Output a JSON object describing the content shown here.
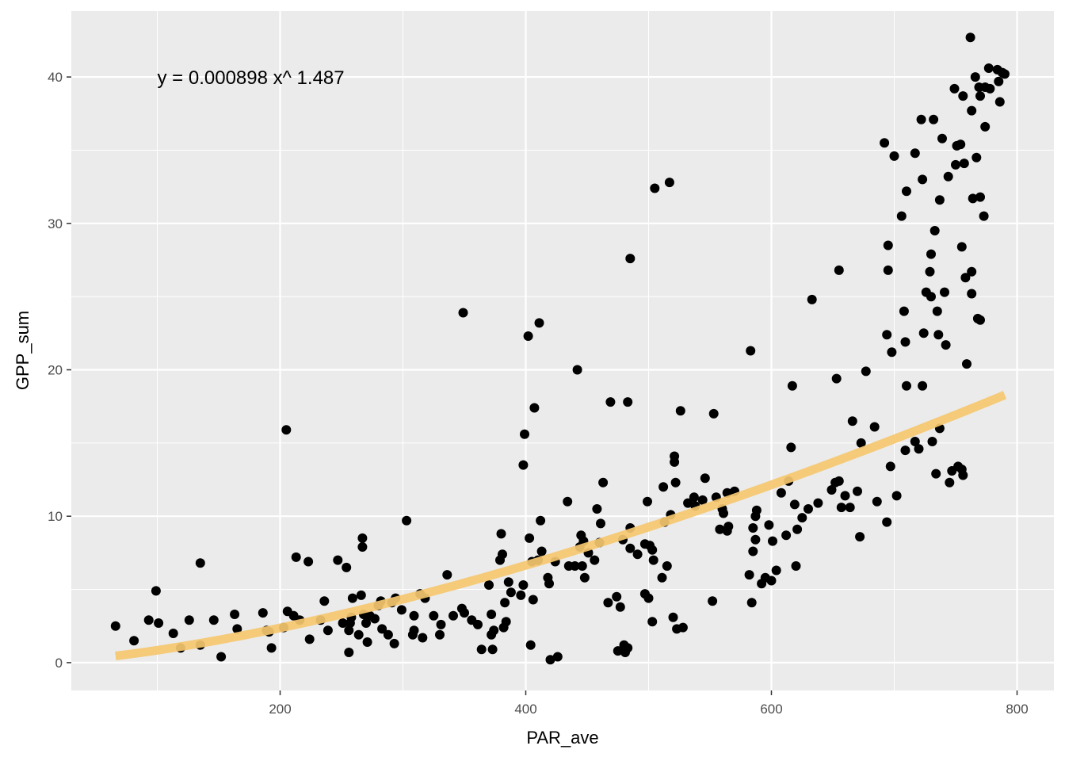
{
  "chart_data": {
    "type": "scatter",
    "title": "",
    "xlabel": "PAR_ave",
    "ylabel": "GPP_sum",
    "xlim": [
      30,
      830
    ],
    "ylim": [
      -1.9,
      44.5
    ],
    "x_ticks": [
      200,
      400,
      600,
      800
    ],
    "y_ticks": [
      0,
      10,
      20,
      30,
      40
    ],
    "grid": true,
    "legend": "none",
    "annotation": {
      "text": "y =  0.000898  x^ 1.487",
      "x": 100,
      "y": 40
    },
    "fit": {
      "type": "power",
      "a": 0.000898,
      "b": 1.487,
      "x_range": [
        66,
        790
      ],
      "color": "#F5C76F"
    },
    "point_color": "#000000",
    "panel_color": "#EBEBEB",
    "points": [
      [
        66,
        2.5
      ],
      [
        81,
        1.5
      ],
      [
        93,
        2.9
      ],
      [
        99,
        4.9
      ],
      [
        101,
        2.7
      ],
      [
        113,
        2.0
      ],
      [
        119,
        1.0
      ],
      [
        126,
        2.9
      ],
      [
        135,
        1.2
      ],
      [
        135,
        6.8
      ],
      [
        146,
        2.9
      ],
      [
        152,
        0.4
      ],
      [
        163,
        3.3
      ],
      [
        165,
        2.3
      ],
      [
        186,
        3.4
      ],
      [
        189,
        2.2
      ],
      [
        191,
        2.1
      ],
      [
        193,
        1.0
      ],
      [
        203,
        2.4
      ],
      [
        205,
        15.9
      ],
      [
        206,
        3.5
      ],
      [
        211,
        3.2
      ],
      [
        213,
        7.2
      ],
      [
        216,
        2.9
      ],
      [
        223,
        6.9
      ],
      [
        224,
        1.6
      ],
      [
        233,
        2.9
      ],
      [
        236,
        4.2
      ],
      [
        239,
        2.2
      ],
      [
        247,
        7.0
      ],
      [
        251,
        2.7
      ],
      [
        254,
        6.5
      ],
      [
        256,
        2.2
      ],
      [
        256,
        0.7
      ],
      [
        257,
        2.7
      ],
      [
        258,
        3.1
      ],
      [
        259,
        4.4
      ],
      [
        264,
        1.9
      ],
      [
        266,
        4.6
      ],
      [
        267,
        7.9
      ],
      [
        267,
        8.5
      ],
      [
        268,
        3.3
      ],
      [
        270,
        2.7
      ],
      [
        271,
        1.4
      ],
      [
        273,
        3.2
      ],
      [
        277,
        3.0
      ],
      [
        280,
        3.9
      ],
      [
        282,
        4.2
      ],
      [
        283,
        2.3
      ],
      [
        288,
        1.9
      ],
      [
        291,
        4.1
      ],
      [
        293,
        1.3
      ],
      [
        294,
        4.4
      ],
      [
        299,
        3.6
      ],
      [
        303,
        9.7
      ],
      [
        308,
        1.9
      ],
      [
        309,
        2.2
      ],
      [
        309,
        3.2
      ],
      [
        314,
        4.7
      ],
      [
        316,
        1.7
      ],
      [
        318,
        4.4
      ],
      [
        325,
        3.2
      ],
      [
        330,
        1.9
      ],
      [
        331,
        2.6
      ],
      [
        336,
        6.0
      ],
      [
        341,
        3.2
      ],
      [
        348,
        3.7
      ],
      [
        349,
        23.9
      ],
      [
        350,
        3.4
      ],
      [
        356,
        2.9
      ],
      [
        361,
        2.6
      ],
      [
        364,
        0.9
      ],
      [
        370,
        5.3
      ],
      [
        372,
        1.9
      ],
      [
        372,
        3.3
      ],
      [
        373,
        0.9
      ],
      [
        374,
        2.2
      ],
      [
        379,
        7.0
      ],
      [
        380,
        8.8
      ],
      [
        381,
        7.4
      ],
      [
        382,
        2.4
      ],
      [
        383,
        4.1
      ],
      [
        384,
        2.8
      ],
      [
        386,
        5.5
      ],
      [
        388,
        4.8
      ],
      [
        396,
        4.6
      ],
      [
        398,
        5.3
      ],
      [
        398,
        13.5
      ],
      [
        399,
        15.6
      ],
      [
        402,
        22.3
      ],
      [
        403,
        8.5
      ],
      [
        404,
        1.2
      ],
      [
        405,
        6.9
      ],
      [
        406,
        4.3
      ],
      [
        407,
        17.4
      ],
      [
        410,
        7.0
      ],
      [
        411,
        23.2
      ],
      [
        412,
        9.7
      ],
      [
        413,
        7.6
      ],
      [
        418,
        5.8
      ],
      [
        419,
        5.4
      ],
      [
        420,
        0.2
      ],
      [
        424,
        6.9
      ],
      [
        426,
        0.4
      ],
      [
        434,
        11.0
      ],
      [
        435,
        6.6
      ],
      [
        440,
        6.6
      ],
      [
        442,
        20.0
      ],
      [
        444,
        7.9
      ],
      [
        445,
        8.7
      ],
      [
        446,
        6.6
      ],
      [
        447,
        8.3
      ],
      [
        448,
        5.8
      ],
      [
        451,
        7.5
      ],
      [
        456,
        7.0
      ],
      [
        458,
        10.5
      ],
      [
        460,
        8.2
      ],
      [
        461,
        9.5
      ],
      [
        463,
        12.3
      ],
      [
        467,
        4.1
      ],
      [
        469,
        17.8
      ],
      [
        474,
        4.5
      ],
      [
        475,
        0.8
      ],
      [
        477,
        3.8
      ],
      [
        479,
        8.4
      ],
      [
        480,
        1.2
      ],
      [
        481,
        0.7
      ],
      [
        483,
        1.0
      ],
      [
        483,
        17.8
      ],
      [
        485,
        7.8
      ],
      [
        485,
        27.6
      ],
      [
        485,
        9.2
      ],
      [
        491,
        7.4
      ],
      [
        497,
        8.1
      ],
      [
        497,
        4.7
      ],
      [
        499,
        11.0
      ],
      [
        500,
        4.4
      ],
      [
        501,
        8.0
      ],
      [
        503,
        2.8
      ],
      [
        503,
        7.7
      ],
      [
        504,
        7.0
      ],
      [
        505,
        32.4
      ],
      [
        511,
        5.8
      ],
      [
        512,
        12.0
      ],
      [
        513,
        9.6
      ],
      [
        515,
        6.6
      ],
      [
        517,
        32.8
      ],
      [
        518,
        10.1
      ],
      [
        520,
        3.1
      ],
      [
        521,
        13.7
      ],
      [
        521,
        14.1
      ],
      [
        522,
        12.3
      ],
      [
        523,
        2.3
      ],
      [
        526,
        17.2
      ],
      [
        528,
        2.4
      ],
      [
        532,
        10.9
      ],
      [
        537,
        11.3
      ],
      [
        538,
        10.7
      ],
      [
        544,
        11.1
      ],
      [
        546,
        12.6
      ],
      [
        552,
        4.2
      ],
      [
        553,
        17.0
      ],
      [
        555,
        11.3
      ],
      [
        558,
        9.1
      ],
      [
        560,
        10.5
      ],
      [
        561,
        10.2
      ],
      [
        564,
        11.6
      ],
      [
        564,
        9.0
      ],
      [
        565,
        9.3
      ],
      [
        570,
        11.7
      ],
      [
        582,
        6.0
      ],
      [
        583,
        21.3
      ],
      [
        584,
        4.1
      ],
      [
        585,
        9.2
      ],
      [
        585,
        7.6
      ],
      [
        587,
        10.0
      ],
      [
        587,
        8.4
      ],
      [
        588,
        10.4
      ],
      [
        592,
        5.4
      ],
      [
        595,
        5.8
      ],
      [
        598,
        9.4
      ],
      [
        600,
        5.6
      ],
      [
        601,
        8.3
      ],
      [
        604,
        6.3
      ],
      [
        608,
        11.6
      ],
      [
        612,
        8.7
      ],
      [
        614,
        12.4
      ],
      [
        616,
        14.7
      ],
      [
        617,
        18.9
      ],
      [
        619,
        10.8
      ],
      [
        620,
        6.6
      ],
      [
        621,
        9.1
      ],
      [
        625,
        9.9
      ],
      [
        630,
        10.5
      ],
      [
        633,
        24.8
      ],
      [
        638,
        10.9
      ],
      [
        649,
        11.8
      ],
      [
        652,
        12.3
      ],
      [
        653,
        19.4
      ],
      [
        655,
        12.4
      ],
      [
        655,
        26.8
      ],
      [
        657,
        10.6
      ],
      [
        660,
        11.4
      ],
      [
        664,
        10.6
      ],
      [
        666,
        16.5
      ],
      [
        670,
        11.7
      ],
      [
        672,
        8.6
      ],
      [
        673,
        15.0
      ],
      [
        677,
        19.9
      ],
      [
        684,
        16.1
      ],
      [
        686,
        11.0
      ],
      [
        692,
        35.5
      ],
      [
        694,
        22.4
      ],
      [
        694,
        9.6
      ],
      [
        695,
        26.8
      ],
      [
        695,
        28.5
      ],
      [
        697,
        13.4
      ],
      [
        698,
        21.2
      ],
      [
        700,
        34.6
      ],
      [
        702,
        11.4
      ],
      [
        706,
        30.5
      ],
      [
        708,
        24.0
      ],
      [
        709,
        14.5
      ],
      [
        709,
        21.9
      ],
      [
        710,
        32.2
      ],
      [
        710,
        18.9
      ],
      [
        717,
        34.8
      ],
      [
        717,
        15.1
      ],
      [
        720,
        14.6
      ],
      [
        722,
        37.1
      ],
      [
        723,
        33.0
      ],
      [
        723,
        18.9
      ],
      [
        724,
        22.5
      ],
      [
        726,
        25.3
      ],
      [
        729,
        26.7
      ],
      [
        730,
        27.9
      ],
      [
        730,
        25.0
      ],
      [
        731,
        15.1
      ],
      [
        732,
        37.1
      ],
      [
        733,
        29.5
      ],
      [
        734,
        12.9
      ],
      [
        735,
        24.0
      ],
      [
        736,
        22.4
      ],
      [
        737,
        16.0
      ],
      [
        737,
        31.6
      ],
      [
        739,
        35.8
      ],
      [
        741,
        25.3
      ],
      [
        742,
        21.7
      ],
      [
        744,
        33.2
      ],
      [
        745,
        12.3
      ],
      [
        747,
        13.1
      ],
      [
        749,
        39.2
      ],
      [
        750,
        34.0
      ],
      [
        751,
        35.3
      ],
      [
        752,
        13.4
      ],
      [
        754,
        35.4
      ],
      [
        755,
        28.4
      ],
      [
        755,
        13.2
      ],
      [
        756,
        38.7
      ],
      [
        756,
        12.8
      ],
      [
        757,
        34.1
      ],
      [
        758,
        26.3
      ],
      [
        759,
        20.4
      ],
      [
        762,
        42.7
      ],
      [
        763,
        37.7
      ],
      [
        763,
        26.7
      ],
      [
        763,
        25.2
      ],
      [
        764,
        31.7
      ],
      [
        766,
        40.0
      ],
      [
        767,
        34.5
      ],
      [
        768,
        23.5
      ],
      [
        769,
        39.3
      ],
      [
        770,
        38.7
      ],
      [
        770,
        23.4
      ],
      [
        770,
        31.8
      ],
      [
        773,
        30.5
      ],
      [
        774,
        39.3
      ],
      [
        774,
        36.6
      ],
      [
        777,
        40.6
      ],
      [
        778,
        39.2
      ],
      [
        784,
        40.5
      ],
      [
        785,
        39.7
      ],
      [
        786,
        38.3
      ],
      [
        788,
        40.3
      ],
      [
        790,
        40.2
      ]
    ]
  }
}
